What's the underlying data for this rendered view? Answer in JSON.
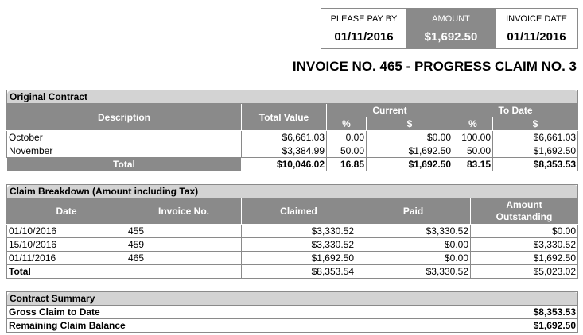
{
  "paybox": {
    "pay_by_label": "PLEASE PAY BY",
    "pay_by_value": "01/11/2016",
    "amount_label": "AMOUNT",
    "amount_value": "$1,692.50",
    "invoice_date_label": "INVOICE DATE",
    "invoice_date_value": "01/11/2016"
  },
  "title": "INVOICE NO. 465 - PROGRESS CLAIM NO. 3",
  "original_contract": {
    "caption": "Original Contract",
    "headers": {
      "description": "Description",
      "total_value": "Total Value",
      "current": "Current",
      "to_date": "To Date",
      "pct": "%",
      "dollar": "$"
    },
    "rows": [
      {
        "description": "October",
        "total_value": "$6,661.03",
        "current_pct": "0.00",
        "current_amt": "$0.00",
        "to_date_pct": "100.00",
        "to_date_amt": "$6,661.03"
      },
      {
        "description": "November",
        "total_value": "$3,384.99",
        "current_pct": "50.00",
        "current_amt": "$1,692.50",
        "to_date_pct": "50.00",
        "to_date_amt": "$1,692.50"
      }
    ],
    "total": {
      "label": "Total",
      "total_value": "$10,046.02",
      "current_pct": "16.85",
      "current_amt": "$1,692.50",
      "to_date_pct": "83.15",
      "to_date_amt": "$8,353.53"
    }
  },
  "claim_breakdown": {
    "caption": "Claim Breakdown (Amount including Tax)",
    "headers": {
      "date": "Date",
      "invoice_no": "Invoice No.",
      "claimed": "Claimed",
      "paid": "Paid",
      "outstanding_1": "Amount",
      "outstanding_2": "Outstanding"
    },
    "rows": [
      {
        "date": "01/10/2016",
        "invoice_no": "455",
        "claimed": "$3,330.52",
        "paid": "$3,330.52",
        "outstanding": "$0.00"
      },
      {
        "date": "15/10/2016",
        "invoice_no": "459",
        "claimed": "$3,330.52",
        "paid": "$0.00",
        "outstanding": "$3,330.52"
      },
      {
        "date": "01/11/2016",
        "invoice_no": "465",
        "claimed": "$1,692.50",
        "paid": "$0.00",
        "outstanding": "$1,692.50"
      }
    ],
    "total": {
      "label": "Total",
      "claimed": "$8,353.54",
      "paid": "$3,330.52",
      "outstanding": "$5,023.02"
    }
  },
  "contract_summary": {
    "caption": "Contract Summary",
    "rows": [
      {
        "label": "Gross Claim to Date",
        "value": "$8,353.53"
      },
      {
        "label": "Remaining Claim Balance",
        "value": "$1,692.50"
      }
    ]
  }
}
